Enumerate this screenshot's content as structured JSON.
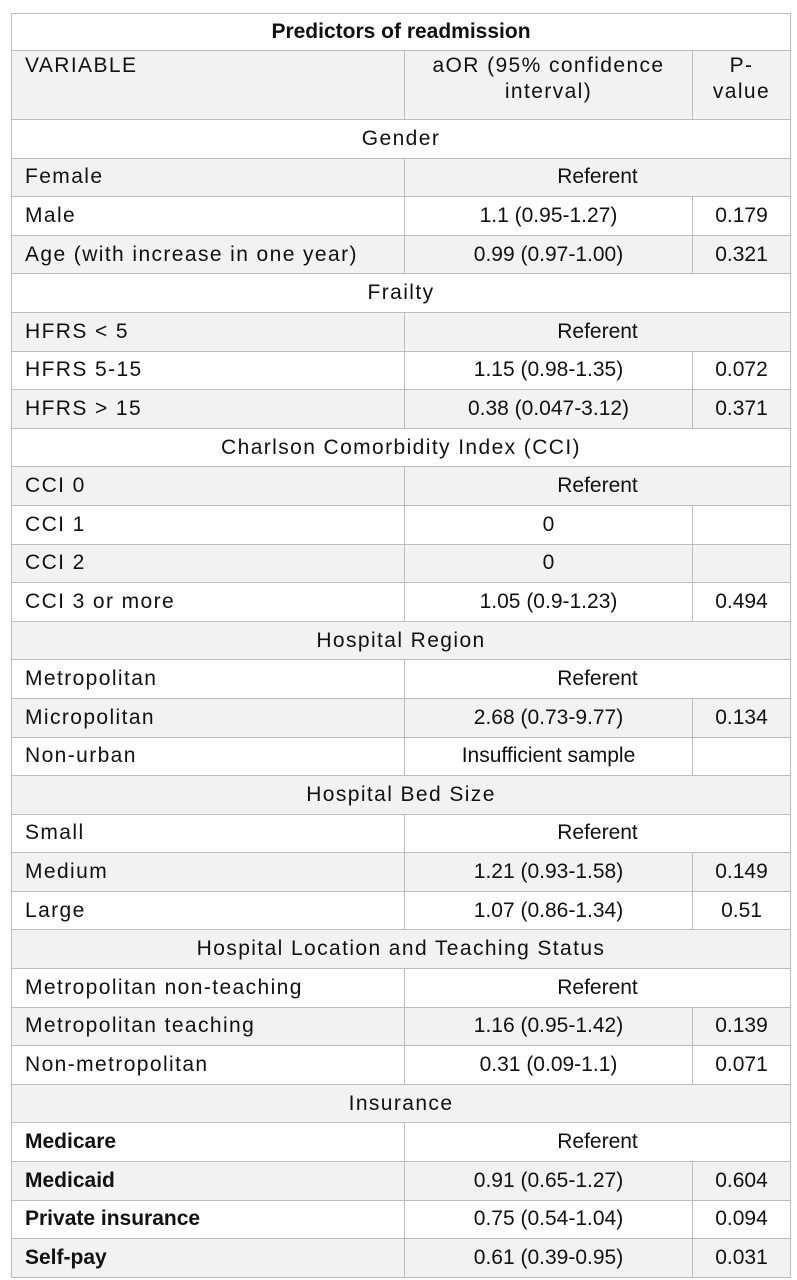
{
  "table": {
    "title": "Predictors of readmission",
    "headers": {
      "variable": "VARIABLE",
      "aor": "aOR (95% confidence interval)",
      "pvalue": "P-value"
    },
    "rows": [
      {
        "kind": "section",
        "label": "Gender"
      },
      {
        "kind": "row",
        "variable": "Female",
        "aor": "Referent",
        "pvalue": "",
        "shade": true,
        "merged": true
      },
      {
        "kind": "row",
        "variable": "Male",
        "aor": "1.1 (0.95-1.27)",
        "pvalue": "0.179"
      },
      {
        "kind": "row",
        "variable": "Age (with increase in one year)",
        "aor": "0.99 (0.97-1.00)",
        "pvalue": "0.321",
        "shade": true
      },
      {
        "kind": "section",
        "label": "Frailty"
      },
      {
        "kind": "row",
        "variable": "HFRS < 5",
        "aor": "Referent",
        "pvalue": "",
        "shade": true,
        "merged": true
      },
      {
        "kind": "row",
        "variable": "HFRS 5-15",
        "aor": "1.15 (0.98-1.35)",
        "pvalue": "0.072"
      },
      {
        "kind": "row",
        "variable": "HFRS > 15",
        "aor": "0.38 (0.047-3.12)",
        "pvalue": "0.371",
        "shade": true
      },
      {
        "kind": "section",
        "label": "Charlson Comorbidity Index (CCI)"
      },
      {
        "kind": "row",
        "variable": "CCI 0",
        "aor": "Referent",
        "pvalue": "",
        "shade": true,
        "merged": true
      },
      {
        "kind": "row",
        "variable": "CCI 1",
        "aor": "0",
        "pvalue": ""
      },
      {
        "kind": "row",
        "variable": "CCI 2",
        "aor": "0",
        "pvalue": "",
        "shade": true
      },
      {
        "kind": "row",
        "variable": "CCI 3 or more",
        "aor": "1.05 (0.9-1.23)",
        "pvalue": "0.494"
      },
      {
        "kind": "section",
        "label": "Hospital Region",
        "shade": true
      },
      {
        "kind": "row",
        "variable": "Metropolitan",
        "aor": "Referent",
        "pvalue": "",
        "merged": true
      },
      {
        "kind": "row",
        "variable": "Micropolitan",
        "aor": "2.68 (0.73-9.77)",
        "pvalue": "0.134",
        "shade": true
      },
      {
        "kind": "row",
        "variable": "Non-urban",
        "aor": "Insufficient sample",
        "pvalue": ""
      },
      {
        "kind": "section",
        "label": "Hospital Bed Size",
        "shade": true
      },
      {
        "kind": "row",
        "variable": "Small",
        "aor": "Referent",
        "pvalue": "",
        "merged": true
      },
      {
        "kind": "row",
        "variable": "Medium",
        "aor": "1.21 (0.93-1.58)",
        "pvalue": "0.149",
        "shade": true
      },
      {
        "kind": "row",
        "variable": "Large",
        "aor": "1.07 (0.86-1.34)",
        "pvalue": "0.51"
      },
      {
        "kind": "section",
        "label": "Hospital Location and Teaching Status",
        "shade": true
      },
      {
        "kind": "row",
        "variable": "Metropolitan non-teaching",
        "aor": "Referent",
        "pvalue": "",
        "merged": true
      },
      {
        "kind": "row",
        "variable": "Metropolitan teaching",
        "aor": "1.16 (0.95-1.42)",
        "pvalue": "0.139",
        "shade": true
      },
      {
        "kind": "row",
        "variable": "Non-metropolitan",
        "aor": "0.31 (0.09-1.1)",
        "pvalue": "0.071"
      },
      {
        "kind": "section",
        "label": "Insurance",
        "shade": true
      },
      {
        "kind": "row",
        "variable": "Medicare",
        "aor": "Referent",
        "pvalue": "",
        "merged": true,
        "bold": true
      },
      {
        "kind": "row",
        "variable": "Medicaid",
        "aor": "0.91 (0.65-1.27)",
        "pvalue": "0.604",
        "shade": true,
        "bold": true
      },
      {
        "kind": "row",
        "variable": "Private insurance",
        "aor": "0.75 (0.54-1.04)",
        "pvalue": "0.094",
        "bold": true
      },
      {
        "kind": "row",
        "variable": "Self-pay",
        "aor": "0.61 (0.39-0.95)",
        "pvalue": "0.031",
        "shade": true,
        "bold": true
      }
    ]
  }
}
